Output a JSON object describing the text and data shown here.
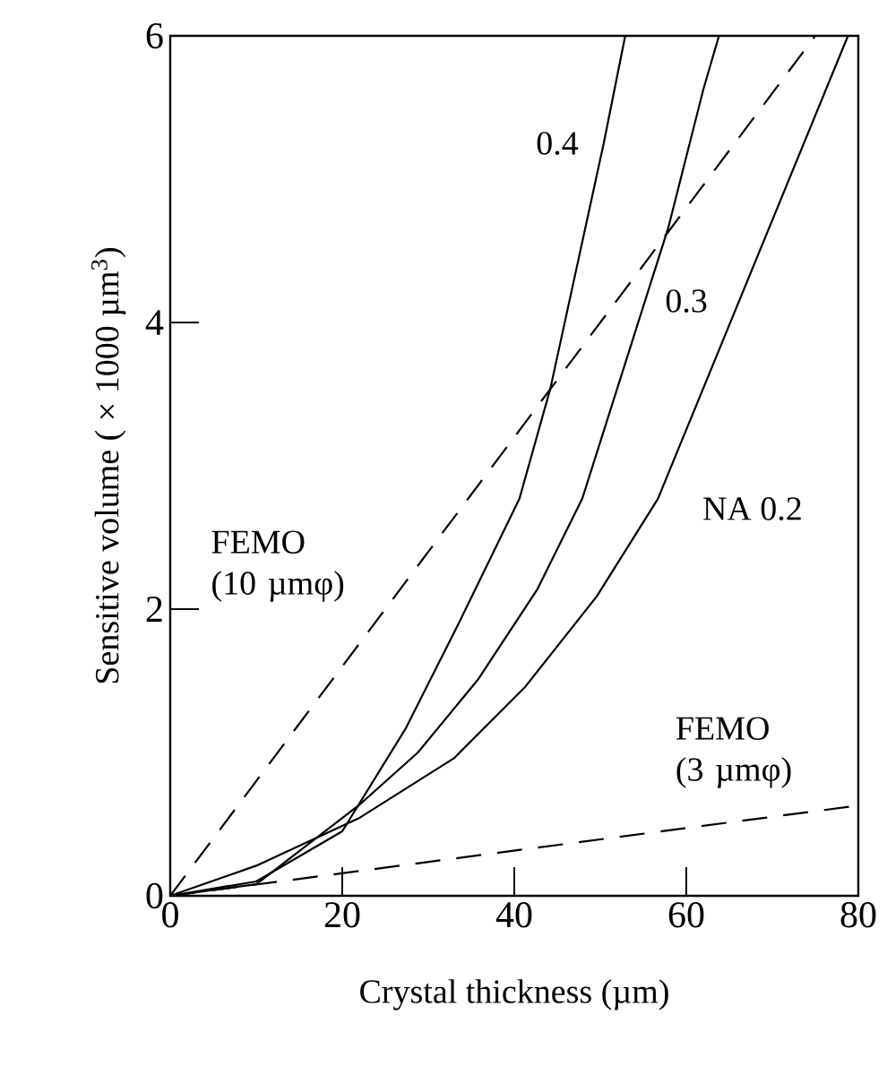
{
  "chart_data": {
    "type": "line",
    "xlabel": "Crystal thickness (µm)",
    "ylabel": "Sensitive volume ( × 1000 µm$^{3}$)",
    "xlim": [
      0,
      80
    ],
    "ylim": [
      0,
      6
    ],
    "xticks": [
      0,
      20,
      40,
      60,
      80
    ],
    "yticks": [
      0,
      2,
      4,
      6
    ],
    "grid": false,
    "legend": false,
    "marker": "none",
    "series": [
      {
        "name": "0.4",
        "color": "#000000",
        "line_style": "solid",
        "x": [
          0,
          10,
          20,
          27.4,
          33.7,
          40.6,
          44.2,
          50.4,
          52.9
        ],
        "values": [
          0,
          0.1,
          0.45,
          1.17,
          1.92,
          2.77,
          3.54,
          5.25,
          6
        ]
      },
      {
        "name": "0.3",
        "color": "#000000",
        "line_style": "solid",
        "x": [
          0,
          10,
          21.9,
          28.8,
          35.8,
          42.7,
          47.9,
          57.9,
          62,
          63.8
        ],
        "values": [
          0,
          0.08,
          0.63,
          1.0,
          1.51,
          2.14,
          2.77,
          4.66,
          5.63,
          6
        ]
      },
      {
        "name": "NA 0.2",
        "color": "#000000",
        "line_style": "solid",
        "x": [
          0,
          10,
          21.9,
          33,
          41.3,
          49.6,
          56.7,
          78.8
        ],
        "values": [
          0,
          0.21,
          0.54,
          0.96,
          1.46,
          2.09,
          2.77,
          6
        ]
      },
      {
        "name": "FEMO (10 µmφ)",
        "color": "#000000",
        "line_style": "dashed",
        "x": [
          0,
          75
        ],
        "values": [
          0,
          6
        ]
      },
      {
        "name": "FEMO (3 µmφ)",
        "color": "#000000",
        "line_style": "dashed",
        "x": [
          0,
          80
        ],
        "values": [
          0,
          0.63
        ]
      }
    ]
  }
}
